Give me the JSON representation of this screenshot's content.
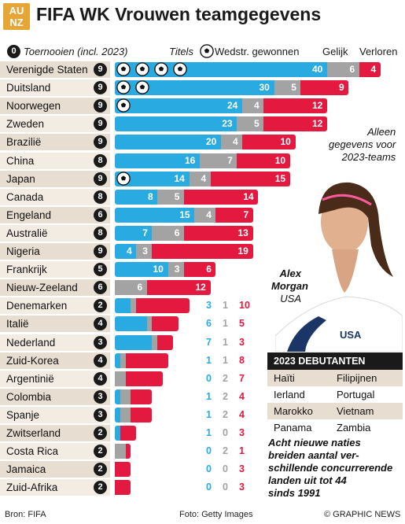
{
  "header": {
    "logo_lines": [
      "AU",
      "NZ"
    ],
    "title": "FIFA WK Vrouwen teamgegevens"
  },
  "legend": {
    "tournaments_sample": "0",
    "tournaments_label": "Toernooien (incl. 2023)",
    "titles_label": "Titels",
    "won_label": "Wedstr. gewonnen",
    "draw_label": "Gelijk",
    "lost_label": "Verloren"
  },
  "colors": {
    "won": "#29abe2",
    "draw": "#a3a3a3",
    "lost": "#e3193f",
    "row_odd": "#e7ddd0",
    "row_even": "#f3ece3",
    "circle": "#1a1a1a"
  },
  "chart_data": {
    "type": "bar",
    "stacked": true,
    "orientation": "horizontal",
    "categories": [
      "Verenigde Staten",
      "Duitsland",
      "Noorwegen",
      "Zweden",
      "Brazilië",
      "China",
      "Japan",
      "Canada",
      "Engeland",
      "Australië",
      "Nigeria",
      "Frankrijk",
      "Nieuw-Zeeland",
      "Denemarken",
      "Italië",
      "Nederland",
      "Zuid-Korea",
      "Argentinië",
      "Colombia",
      "Spanje",
      "Zwitserland",
      "Costa Rica",
      "Jamaica",
      "Zuid-Afrika"
    ],
    "tournaments": [
      9,
      9,
      9,
      9,
      9,
      8,
      9,
      8,
      6,
      8,
      9,
      5,
      6,
      2,
      4,
      3,
      4,
      4,
      3,
      3,
      2,
      2,
      2,
      2
    ],
    "titles": [
      4,
      2,
      1,
      0,
      0,
      0,
      1,
      0,
      0,
      0,
      0,
      0,
      0,
      0,
      0,
      0,
      0,
      0,
      0,
      0,
      0,
      0,
      0,
      0
    ],
    "series": [
      {
        "name": "Wedstr. gewonnen",
        "values": [
          40,
          30,
          24,
          23,
          20,
          16,
          14,
          8,
          15,
          7,
          4,
          10,
          0,
          3,
          6,
          7,
          1,
          0,
          1,
          1,
          1,
          0,
          0,
          0
        ]
      },
      {
        "name": "Gelijk",
        "values": [
          6,
          5,
          4,
          5,
          4,
          7,
          4,
          5,
          4,
          6,
          3,
          3,
          6,
          1,
          1,
          1,
          1,
          2,
          2,
          2,
          0,
          2,
          0,
          0
        ]
      },
      {
        "name": "Verloren",
        "values": [
          4,
          9,
          12,
          12,
          10,
          10,
          15,
          14,
          7,
          13,
          19,
          6,
          12,
          10,
          5,
          3,
          8,
          7,
          4,
          4,
          3,
          1,
          3,
          3
        ]
      }
    ],
    "inside_labels": [
      true,
      true,
      true,
      true,
      true,
      true,
      true,
      true,
      true,
      true,
      true,
      true,
      true,
      false,
      false,
      false,
      false,
      false,
      false,
      false,
      false,
      false,
      false,
      false
    ]
  },
  "annotations": {
    "note_lines": [
      "Alleen",
      "gegevens voor",
      "2023-teams"
    ],
    "player_first": "Alex",
    "player_last": "Morgan",
    "player_country": "USA",
    "jersey_text": "USA"
  },
  "debutants": {
    "title": "2023 DEBUTANTEN",
    "rows": [
      [
        "Haïti",
        "Filipijnen"
      ],
      [
        "Ierland",
        "Portugal"
      ],
      [
        "Marokko",
        "Vietnam"
      ],
      [
        "Panama",
        "Zambia"
      ]
    ]
  },
  "outro_lines": [
    "Acht nieuwe naties",
    "breiden aantal ver-",
    "schillende concurrerende",
    "landen uit tot 44",
    "sinds 1991"
  ],
  "footer": {
    "source": "Bron: FIFA",
    "photo": "Foto: Getty Images",
    "credit": "© GRAPHIC NEWS"
  }
}
